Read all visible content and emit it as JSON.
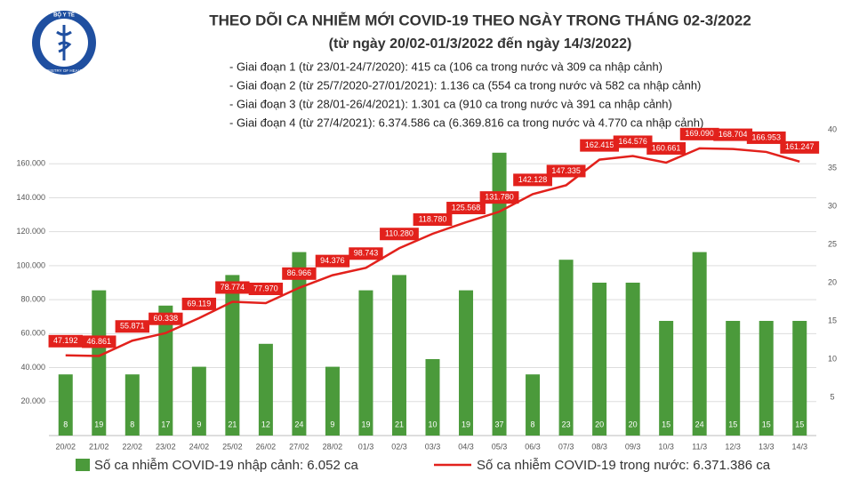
{
  "logo": {
    "top": "BỘ Y TẾ",
    "bottom": "MINISTRY OF HEALTH"
  },
  "chart_data": {
    "type": "bar",
    "title": "THEO DÕI CA NHIỄM MỚI COVID-19 THEO NGÀY TRONG THÁNG 02-3/2022",
    "subtitle": "(từ ngày 20/02-01/3/2022 đến ngày 14/3/2022)",
    "annotations": [
      "- Giai đoạn 1 (từ 23/01-24/7/2020): 415 ca (106 ca trong nước và 309 ca nhập cảnh)",
      "- Giai đoạn 2 (từ 25/7/2020-27/01/2021): 1.136 ca (554 ca trong nước và 582 ca nhập cảnh)",
      "- Giai đoạn 3 (từ 28/01-26/4/2021): 1.301 ca (910 ca trong nước và 391 ca nhập cảnh)",
      "- Giai đoạn 4 (từ 27/4/2021): 6.374.586 ca (6.369.816 ca trong nước và 4.770 ca nhập cảnh)"
    ],
    "categories": [
      "20/02",
      "21/02",
      "22/02",
      "23/02",
      "24/02",
      "25/02",
      "26/02",
      "27/02",
      "28/02",
      "01/3",
      "02/3",
      "03/3",
      "04/3",
      "05/3",
      "06/3",
      "07/3",
      "08/3",
      "09/3",
      "10/3",
      "11/3",
      "12/3",
      "13/3",
      "14/3"
    ],
    "series": [
      {
        "name": "Số ca nhiễm COVID-19 nhập cảnh: 6.052 ca",
        "type": "bar",
        "axis": "y2",
        "color": "#4b9a3b",
        "values": [
          8,
          19,
          8,
          17,
          9,
          21,
          12,
          24,
          9,
          19,
          21,
          10,
          19,
          37,
          8,
          23,
          20,
          20,
          15,
          24,
          15,
          15,
          15
        ]
      },
      {
        "name": "Số ca nhiễm COVID-19 trong nước: 6.371.386 ca",
        "type": "line",
        "color": "#e2211c",
        "values": [
          47192,
          46861,
          55871,
          60338,
          69119,
          78774,
          77970,
          86966,
          94376,
          98743,
          110280,
          118780,
          125568,
          131780,
          142128,
          147335,
          162415,
          164576,
          160661,
          169090,
          168704,
          166953,
          161247
        ],
        "value_labels": [
          "47.192",
          "46.861",
          "55.871",
          "60.338",
          "69.119",
          "78.774",
          "77.970",
          "86.966",
          "94.376",
          "98.743",
          "110.280",
          "118.780",
          "125.568",
          "131.780",
          "142.128",
          "147.335",
          "162.415",
          "164.576",
          "160.661",
          "169.090",
          "168.704",
          "166.953",
          "161.247"
        ]
      }
    ],
    "ylim": [
      0,
      180000
    ],
    "yticks": [
      {
        "value": 20000,
        "label": "20.000"
      },
      {
        "value": 40000,
        "label": "40.000"
      },
      {
        "value": 60000,
        "label": "60.000"
      },
      {
        "value": 80000,
        "label": "80.000"
      },
      {
        "value": 100000,
        "label": "100.000"
      },
      {
        "value": 120000,
        "label": "120.000"
      },
      {
        "value": 140000,
        "label": "140.000"
      },
      {
        "value": 160000,
        "label": "160.000"
      }
    ],
    "y2lim": [
      0,
      40
    ],
    "y2ticks": [
      5,
      10,
      15,
      20,
      25,
      30,
      35,
      40
    ],
    "grid": true
  }
}
